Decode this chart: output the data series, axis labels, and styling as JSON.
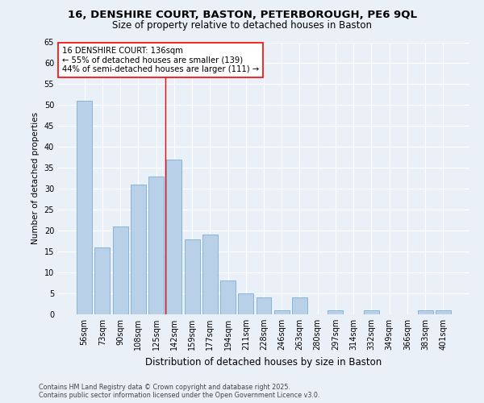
{
  "title1": "16, DENSHIRE COURT, BASTON, PETERBOROUGH, PE6 9QL",
  "title2": "Size of property relative to detached houses in Baston",
  "xlabel": "Distribution of detached houses by size in Baston",
  "ylabel": "Number of detached properties",
  "categories": [
    "56sqm",
    "73sqm",
    "90sqm",
    "108sqm",
    "125sqm",
    "142sqm",
    "159sqm",
    "177sqm",
    "194sqm",
    "211sqm",
    "228sqm",
    "246sqm",
    "263sqm",
    "280sqm",
    "297sqm",
    "314sqm",
    "332sqm",
    "349sqm",
    "366sqm",
    "383sqm",
    "401sqm"
  ],
  "values": [
    51,
    16,
    21,
    31,
    33,
    37,
    18,
    19,
    8,
    5,
    4,
    1,
    4,
    0,
    1,
    0,
    1,
    0,
    0,
    1,
    1
  ],
  "bar_color": "#b8d0e8",
  "bar_edge_color": "#7aadd4",
  "highlight_index": 5,
  "annotation_title": "16 DENSHIRE COURT: 136sqm",
  "annotation_line2": "← 55% of detached houses are smaller (139)",
  "annotation_line3": "44% of semi-detached houses are larger (111) →",
  "ylim": [
    0,
    65
  ],
  "background_color": "#eaf0f8",
  "plot_background": "#eaf0f8",
  "footer": "Contains HM Land Registry data © Crown copyright and database right 2025.\nContains public sector information licensed under the Open Government Licence v3.0."
}
